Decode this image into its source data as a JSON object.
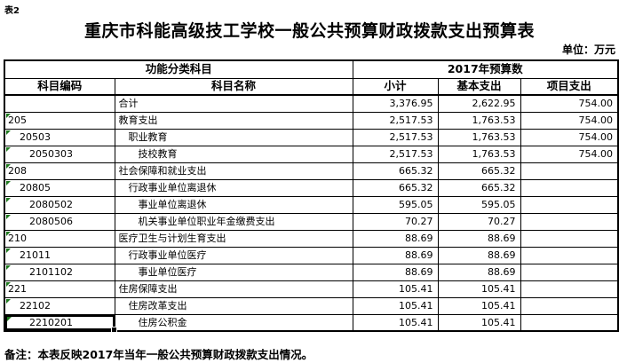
{
  "page": {
    "sheet_label": "表2",
    "title": "重庆市科能高级技工学校一般公共预算财政拨款支出预算表",
    "unit_label": "单位：万元",
    "note": "备注：本表反映2017年当年一般公共预算财政拨款支出情况。"
  },
  "table": {
    "header_groups": {
      "functional_classification": "功能分类科目",
      "budget_2017": "2017年预算数"
    },
    "columns": {
      "code": "科目编码",
      "name": "科目名称",
      "subtotal": "小计",
      "basic": "基本支出",
      "project": "项目支出"
    },
    "rows": [
      {
        "code": "",
        "name": "合计",
        "level": 1,
        "subtotal": "3,376.95",
        "basic": "2,622.95",
        "project": "754.00"
      },
      {
        "code": "205",
        "name": "教育支出",
        "level": 1,
        "subtotal": "2,517.53",
        "basic": "1,763.53",
        "project": "754.00"
      },
      {
        "code": "20503",
        "name": "职业教育",
        "level": 2,
        "subtotal": "2,517.53",
        "basic": "1,763.53",
        "project": "754.00"
      },
      {
        "code": "2050303",
        "name": "技校教育",
        "level": 3,
        "subtotal": "2,517.53",
        "basic": "1,763.53",
        "project": "754.00"
      },
      {
        "code": "208",
        "name": "社会保障和就业支出",
        "level": 1,
        "subtotal": "665.32",
        "basic": "665.32",
        "project": ""
      },
      {
        "code": "20805",
        "name": "行政事业单位离退休",
        "level": 2,
        "subtotal": "665.32",
        "basic": "665.32",
        "project": ""
      },
      {
        "code": "2080502",
        "name": "事业单位离退休",
        "level": 3,
        "subtotal": "595.05",
        "basic": "595.05",
        "project": ""
      },
      {
        "code": "2080506",
        "name": "机关事业单位职业年金缴费支出",
        "level": 3,
        "subtotal": "70.27",
        "basic": "70.27",
        "project": ""
      },
      {
        "code": "210",
        "name": "医疗卫生与计划生育支出",
        "level": 1,
        "subtotal": "88.69",
        "basic": "88.69",
        "project": ""
      },
      {
        "code": "21011",
        "name": "行政事业单位医疗",
        "level": 2,
        "subtotal": "88.69",
        "basic": "88.69",
        "project": ""
      },
      {
        "code": "2101102",
        "name": "事业单位医疗",
        "level": 3,
        "subtotal": "88.69",
        "basic": "88.69",
        "project": ""
      },
      {
        "code": "221",
        "name": "住房保障支出",
        "level": 1,
        "subtotal": "105.41",
        "basic": "105.41",
        "project": ""
      },
      {
        "code": "22102",
        "name": "住房改革支出",
        "level": 2,
        "subtotal": "105.41",
        "basic": "105.41",
        "project": ""
      },
      {
        "code": "2210201",
        "name": "住房公积金",
        "level": 3,
        "subtotal": "105.41",
        "basic": "105.41",
        "project": "",
        "selected": true
      }
    ]
  },
  "colors": {
    "border": "#000000",
    "error_flag_green": "#1f7a1f",
    "selection_border": "#000000",
    "background": "#ffffff",
    "text": "#000000"
  }
}
